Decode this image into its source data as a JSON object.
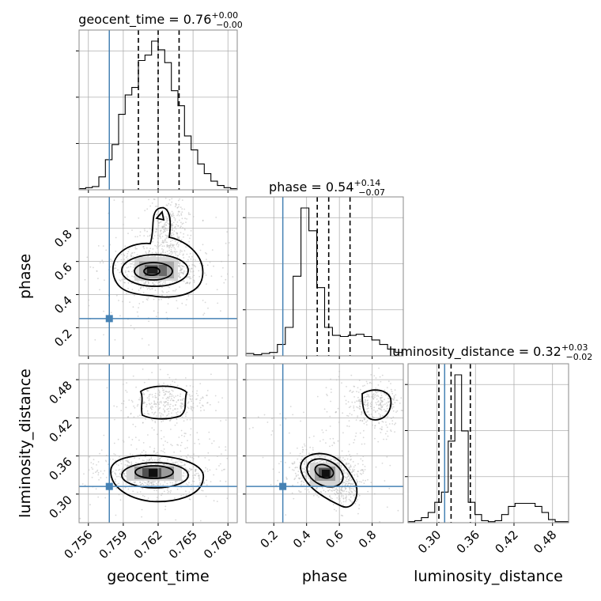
{
  "chart_data": {
    "type": "corner",
    "parameters": [
      "geocent_time",
      "phase",
      "luminosity_distance"
    ],
    "axis_labels": {
      "geocent_time": "geocent_time",
      "phase": "phase",
      "luminosity_distance": "luminosity_distance"
    },
    "ranges": {
      "geocent_time": [
        0.7552,
        0.7688
      ],
      "phase": [
        0.03,
        0.99
      ],
      "luminosity_distance": [
        0.255,
        0.505
      ]
    },
    "ticks": {
      "geocent_time": [
        "0.756",
        "0.759",
        "0.762",
        "0.765",
        "0.768"
      ],
      "phase": [
        "0.2",
        "0.4",
        "0.6",
        "0.8"
      ],
      "luminosity_distance": [
        "0.30",
        "0.36",
        "0.42",
        "0.48"
      ]
    },
    "truth": {
      "geocent_time": 0.7578,
      "phase": 0.255,
      "luminosity_distance": 0.312
    },
    "titles": {
      "geocent_time": {
        "name": "geocent_time",
        "value": "0.76",
        "plus": "+0.00",
        "minus": "−0.00"
      },
      "phase": {
        "name": "phase",
        "value": "0.54",
        "plus": "+0.14",
        "minus": "−0.07"
      },
      "luminosity_distance": {
        "name": "luminosity_distance",
        "value": "0.32",
        "plus": "+0.03",
        "minus": "−0.02"
      }
    },
    "quantiles": {
      "geocent_time": [
        0.7603,
        0.762,
        0.7638
      ],
      "phase": [
        0.465,
        0.535,
        0.665
      ],
      "luminosity_distance": [
        0.303,
        0.322,
        0.352
      ]
    },
    "histograms": {
      "geocent_time": [
        1,
        2,
        3,
        12,
        28,
        42,
        70,
        88,
        95,
        120,
        125,
        138,
        130,
        118,
        92,
        78,
        50,
        37,
        24,
        15,
        8,
        4,
        2,
        1
      ],
      "phase": [
        2,
        1,
        2,
        3,
        10,
        25,
        70,
        130,
        110,
        60,
        25,
        18,
        17,
        18,
        19,
        17,
        14,
        10,
        6,
        3
      ],
      "luminosity_distance": [
        1,
        2,
        5,
        10,
        20,
        30,
        80,
        145,
        90,
        20,
        8,
        2,
        1,
        2,
        8,
        16,
        19,
        19,
        19,
        16,
        10,
        3,
        1,
        1
      ]
    },
    "grid": true,
    "truth_color": "#4682b4"
  }
}
